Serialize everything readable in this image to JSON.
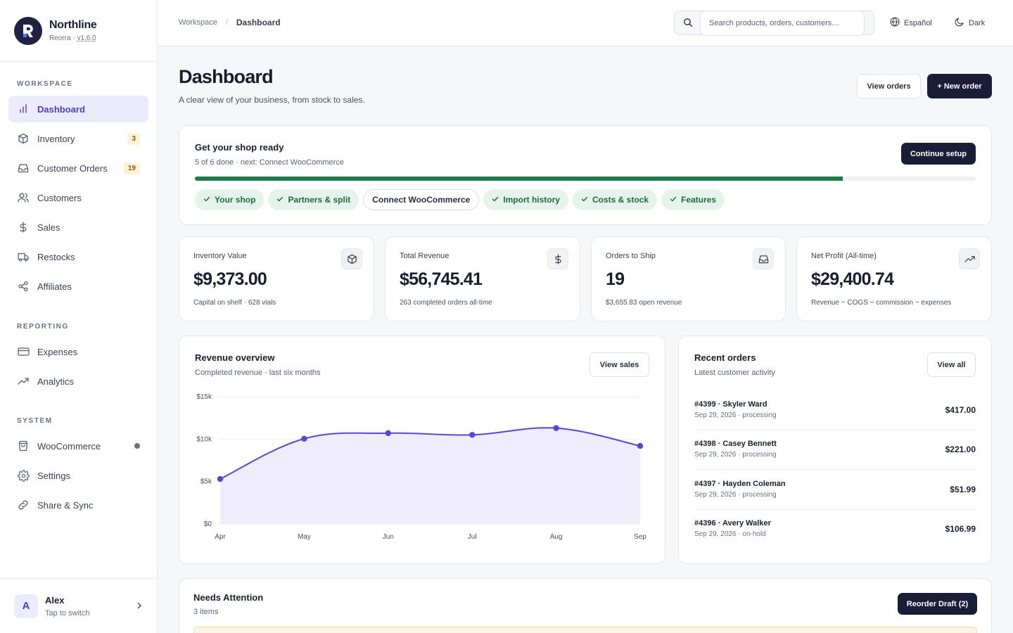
{
  "brand": {
    "name": "Northline",
    "sub_prefix": "Reorra · ",
    "version": "v1.6.0"
  },
  "sidebar": {
    "sections": [
      "WORKSPACE",
      "REPORTING",
      "SYSTEM"
    ],
    "items": [
      {
        "label": "Dashboard",
        "icon": "bar-chart-icon",
        "active": true
      },
      {
        "label": "Inventory",
        "icon": "box-icon",
        "badge": "3"
      },
      {
        "label": "Customer Orders",
        "icon": "inbox-icon",
        "badge": "19"
      },
      {
        "label": "Customers",
        "icon": "users-icon"
      },
      {
        "label": "Sales",
        "icon": "dollar-icon"
      },
      {
        "label": "Restocks",
        "icon": "truck-icon"
      },
      {
        "label": "Affiliates",
        "icon": "share-icon"
      },
      {
        "label": "Expenses",
        "icon": "credit-card-icon"
      },
      {
        "label": "Analytics",
        "icon": "trending-up-icon"
      },
      {
        "label": "WooCommerce",
        "icon": "shopping-bag-icon",
        "dot": true
      },
      {
        "label": "Settings",
        "icon": "gear-icon"
      },
      {
        "label": "Share & Sync",
        "icon": "link-icon"
      }
    ]
  },
  "user": {
    "initial": "A",
    "name": "Alex",
    "sub": "Tap to switch"
  },
  "topbar": {
    "breadcrumb": [
      "Workspace",
      "Dashboard"
    ],
    "search_placeholder": "Search products, orders, customers…",
    "language": "Español",
    "theme": "Dark"
  },
  "page": {
    "title": "Dashboard",
    "subtitle": "A clear view of your business, from stock to sales.",
    "view_orders": "View orders",
    "new_order": "+ New order"
  },
  "setup": {
    "title": "Get your shop ready",
    "sub": "5 of 6 done · next: Connect WooCommerce",
    "button": "Continue setup",
    "progress": 0.83,
    "steps": [
      {
        "label": "Your shop",
        "done": true
      },
      {
        "label": "Partners & split",
        "done": true
      },
      {
        "label": "Connect WooCommerce",
        "done": false
      },
      {
        "label": "Import history",
        "done": true
      },
      {
        "label": "Costs & stock",
        "done": true
      },
      {
        "label": "Features",
        "done": true
      }
    ]
  },
  "stats": [
    {
      "label": "Inventory Value",
      "value": "$9,373.00",
      "note": "Capital on shelf · 628 vials",
      "icon": "box-icon"
    },
    {
      "label": "Total Revenue",
      "value": "$56,745.41",
      "note": "263 completed orders all-time",
      "icon": "dollar-icon"
    },
    {
      "label": "Orders to Ship",
      "value": "19",
      "note": "$3,655.83 open revenue",
      "icon": "inbox-icon"
    },
    {
      "label": "Net Profit (All-time)",
      "value": "$29,400.74",
      "note": "Revenue − COGS − commission − expenses",
      "icon": "trending-up-icon"
    }
  ],
  "revenue": {
    "title": "Revenue overview",
    "sub": "Completed revenue · last six months",
    "button": "View sales"
  },
  "chart_data": {
    "type": "area",
    "categories": [
      "Apr",
      "May",
      "Jun",
      "Jul",
      "Aug",
      "Sep"
    ],
    "values": [
      5300,
      10050,
      10700,
      10500,
      11300,
      9200
    ],
    "ylim": [
      0,
      15000
    ],
    "yticks": [
      "$0",
      "$5k",
      "$10k",
      "$15k"
    ],
    "color": "#5b45d6",
    "fill": "#efedfb",
    "grid": true
  },
  "recent": {
    "title": "Recent orders",
    "sub": "Latest customer activity",
    "button": "View all",
    "orders": [
      {
        "title": "#4399 · Skyler Ward",
        "sub": "Sep 29, 2026 · processing",
        "amount": "$417.00"
      },
      {
        "title": "#4398 · Casey Bennett",
        "sub": "Sep 29, 2026 · processing",
        "amount": "$221.00"
      },
      {
        "title": "#4397 · Hayden Coleman",
        "sub": "Sep 29, 2026 · processing",
        "amount": "$51.99"
      },
      {
        "title": "#4396 · Avery Walker",
        "sub": "Sep 29, 2026 · on-hold",
        "amount": "$106.99"
      }
    ]
  },
  "attention": {
    "title": "Needs Attention",
    "sub": "3 items",
    "button": "Reorder Draft (2)"
  },
  "colors": {
    "accent": "#4a3fc9",
    "dark": "#1a1d38",
    "success": "#1e7a4e"
  }
}
